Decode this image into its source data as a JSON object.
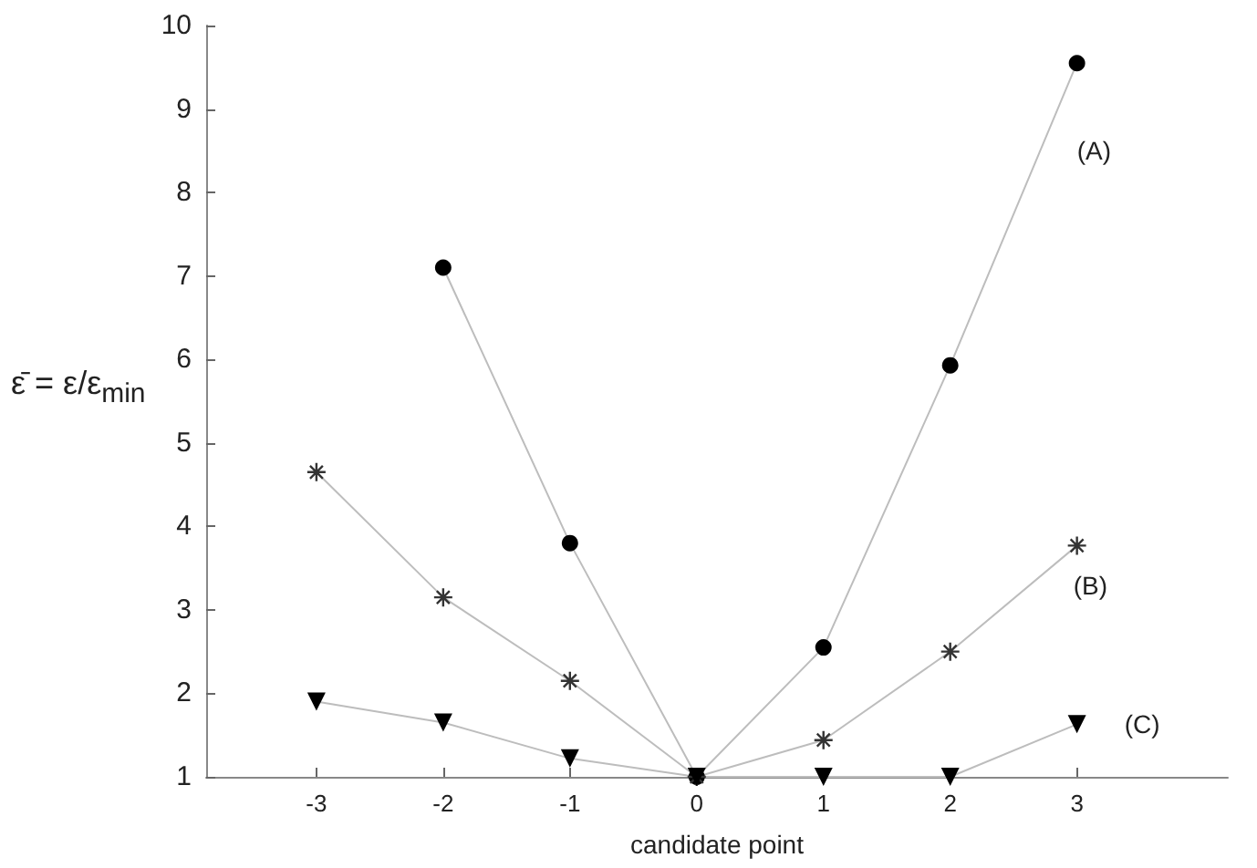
{
  "chart_data": {
    "type": "line",
    "xlabel": "candidate point",
    "ylabel": "ε̄ = ε/ε$_{min}$",
    "x": [
      -3,
      -2,
      -1,
      0,
      1,
      2,
      3
    ],
    "xlim": [
      -3.87,
      4.19
    ],
    "xticks": [
      -3,
      -2,
      -1,
      0,
      1,
      2,
      3
    ],
    "ylim": [
      1,
      10
    ],
    "yticks": [
      1,
      2,
      3,
      4,
      5,
      6,
      7,
      8,
      9,
      10
    ],
    "grid": false,
    "legend": false,
    "series": [
      {
        "name": "(A)",
        "color": "#000000",
        "marker": "circle",
        "values": [
          null,
          7.1,
          3.8,
          1,
          2.55,
          5.93,
          9.55
        ]
      },
      {
        "name": "(B)",
        "color": "#333333",
        "marker": "cross",
        "values": [
          4.65,
          3.15,
          2.15,
          1,
          1.44,
          2.5,
          3.77
        ]
      },
      {
        "name": "(C)",
        "color": "#000000",
        "marker": "triangle",
        "values": [
          1.9,
          1.65,
          1.22,
          1,
          1.0,
          1.0,
          1.63
        ]
      }
    ]
  }
}
